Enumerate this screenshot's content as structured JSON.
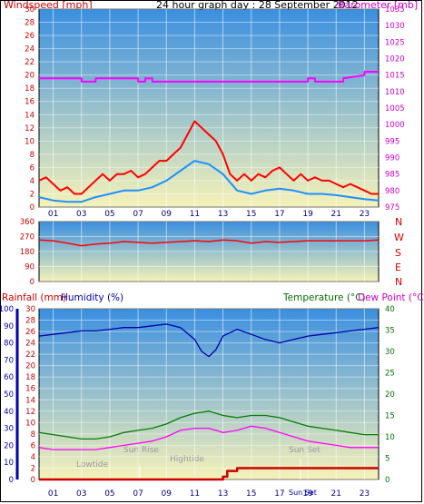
{
  "header": {
    "title": "24 hour graph day : 28 September 2012",
    "left_label": "Windspeed [mph]",
    "right_label": "Barometer [mb]"
  },
  "panel3": {
    "rainfall_label": "Rainfall (mm)",
    "humidity_label": "Humidity (%)",
    "temperature_label": "Temperature (°C)",
    "dewpoint_label": "Dew Point (°C)"
  },
  "direction_letters": [
    "N",
    "W",
    "S",
    "E",
    "N"
  ],
  "time_ticks": [
    "01",
    "03",
    "05",
    "07",
    "09",
    "11",
    "13",
    "15",
    "17",
    "19",
    "21",
    "23"
  ],
  "annotations": {
    "lowtide": "Lowtide",
    "sunrise": "Sun Rise",
    "hightide": "Hightide",
    "sunset": "Sun Set",
    "sunset_bottom": "Sun Set"
  },
  "colors": {
    "windspeed": "#ff0000",
    "windavg": "#1e90ff",
    "barometer": "#ff00ff",
    "direction": "#ff0000",
    "rainfall": "#cc0000",
    "humidity": "#0000aa",
    "temperature": "#008000",
    "dewpoint": "#ff00ff",
    "sky_top": "#3a8fe0",
    "sky_bottom": "#f6f2b8"
  },
  "chart_data": [
    {
      "type": "line",
      "x_unit": "hour",
      "x_range": [
        0,
        24
      ],
      "xticks": [
        "01",
        "03",
        "05",
        "07",
        "09",
        "11",
        "13",
        "15",
        "17",
        "19",
        "21",
        "23"
      ],
      "left_axis": {
        "label": "Windspeed [mph]",
        "ylim": [
          0,
          30
        ],
        "ticks": [
          0,
          2,
          4,
          6,
          8,
          10,
          12,
          14,
          16,
          18,
          20,
          22,
          24,
          26,
          28,
          30
        ]
      },
      "right_axis": {
        "label": "Barometer [mb]",
        "ylim": [
          975,
          1035
        ],
        "ticks": [
          975,
          980,
          985,
          990,
          995,
          1000,
          1005,
          1010,
          1015,
          1020,
          1025,
          1030,
          1035
        ]
      },
      "series": [
        {
          "name": "Windspeed [mph]",
          "axis": "left",
          "x": [
            0,
            0.5,
            1,
            1.5,
            2,
            2.5,
            3,
            3.5,
            4,
            4.5,
            5,
            5.5,
            6,
            6.5,
            7,
            7.5,
            8,
            8.5,
            9,
            9.5,
            10,
            10.5,
            11,
            11.5,
            12,
            12.5,
            13,
            13.5,
            14,
            14.5,
            15,
            15.5,
            16,
            16.5,
            17,
            17.5,
            18,
            18.5,
            19,
            19.5,
            20,
            20.5,
            21,
            21.5,
            22,
            22.5,
            23,
            23.5,
            24
          ],
          "values": [
            4,
            4.5,
            3.5,
            2.5,
            3,
            2,
            2,
            3,
            4,
            5,
            4,
            5,
            5,
            5.5,
            4.5,
            5,
            6,
            7,
            7,
            8,
            9,
            11,
            13,
            12,
            11,
            10,
            8,
            5,
            4,
            5,
            4,
            5,
            4.5,
            5.5,
            6,
            5,
            4,
            5,
            4,
            4.5,
            4,
            4,
            3.5,
            3,
            3.5,
            3,
            2.5,
            2,
            2
          ]
        },
        {
          "name": "Wind average",
          "axis": "left",
          "x": [
            0,
            1,
            2,
            3,
            4,
            5,
            6,
            7,
            8,
            9,
            10,
            11,
            12,
            13,
            14,
            15,
            16,
            17,
            18,
            19,
            20,
            21,
            22,
            23,
            24
          ],
          "values": [
            1.5,
            1,
            0.8,
            0.8,
            1.5,
            2,
            2.5,
            2.5,
            3,
            4,
            5.5,
            7,
            6.5,
            5,
            2.5,
            2,
            2.5,
            2.8,
            2.5,
            2,
            2,
            1.8,
            1.5,
            1.2,
            1
          ]
        },
        {
          "name": "Barometer [mb]",
          "axis": "right",
          "x": [
            0,
            3,
            3.01,
            4,
            4.01,
            7,
            7.01,
            7.5,
            7.51,
            8,
            8.01,
            8.5,
            8.51,
            19,
            19.01,
            19.5,
            19.51,
            21.5,
            21.51,
            23,
            23.01,
            24
          ],
          "values": [
            1014,
            1014,
            1013,
            1013,
            1014,
            1014,
            1013,
            1013,
            1014,
            1014,
            1013,
            1013,
            1013,
            1013,
            1014,
            1014,
            1013,
            1013,
            1014,
            1015,
            1016,
            1016
          ]
        }
      ]
    },
    {
      "type": "line",
      "x_unit": "hour",
      "x_range": [
        0,
        24
      ],
      "y_axis": {
        "label": "Wind direction",
        "ylim": [
          0,
          360
        ],
        "ticks": [
          0,
          90,
          180,
          270,
          360
        ]
      },
      "series": [
        {
          "name": "Wind direction",
          "x": [
            0,
            1,
            2,
            3,
            4,
            5,
            6,
            7,
            8,
            9,
            10,
            11,
            12,
            13,
            14,
            15,
            16,
            17,
            18,
            19,
            20,
            21,
            22,
            23,
            24
          ],
          "values": [
            250,
            245,
            230,
            215,
            225,
            230,
            240,
            235,
            230,
            235,
            240,
            245,
            240,
            250,
            245,
            230,
            240,
            235,
            240,
            245,
            245,
            245,
            245,
            245,
            250
          ]
        }
      ]
    },
    {
      "type": "line",
      "x_unit": "hour",
      "x_range": [
        0,
        24
      ],
      "left_axis_rain": {
        "label": "Rainfall (mm)",
        "ylim": [
          0,
          30
        ],
        "ticks": [
          0,
          2,
          4,
          6,
          8,
          10,
          12,
          14,
          16,
          18,
          20,
          22,
          24,
          26,
          28,
          30
        ]
      },
      "left_axis_humidity": {
        "label": "Humidity (%)",
        "ylim": [
          0,
          100
        ],
        "ticks": [
          0,
          10,
          20,
          30,
          40,
          50,
          60,
          70,
          80,
          90,
          100
        ]
      },
      "right_axis": {
        "label": "Temperature (°C)",
        "ylim": [
          0,
          40
        ],
        "ticks": [
          0,
          5,
          10,
          15,
          20,
          25,
          30,
          35,
          40
        ]
      },
      "series": [
        {
          "name": "Humidity (%)",
          "axis": "humidity",
          "x": [
            0,
            1,
            2,
            3,
            4,
            5,
            6,
            7,
            8,
            9,
            10,
            11,
            11.5,
            12,
            12.5,
            13,
            14,
            15,
            16,
            17,
            18,
            19,
            20,
            21,
            22,
            23,
            24
          ],
          "values": [
            84,
            85,
            86,
            87,
            87,
            88,
            89,
            89,
            90,
            91,
            89,
            82,
            75,
            72,
            76,
            84,
            88,
            85,
            82,
            80,
            82,
            84,
            85,
            86,
            87,
            88,
            89
          ]
        },
        {
          "name": "Temperature (°C)",
          "axis": "right",
          "x": [
            0,
            1,
            2,
            3,
            4,
            5,
            6,
            7,
            8,
            9,
            10,
            11,
            12,
            13,
            14,
            15,
            16,
            17,
            18,
            19,
            20,
            21,
            22,
            23,
            24
          ],
          "values": [
            11,
            10.5,
            10,
            9.5,
            9.5,
            10,
            11,
            11.5,
            12,
            13,
            14.5,
            15.5,
            16,
            15,
            14.5,
            15,
            15,
            14.5,
            13.5,
            12.5,
            12,
            11.5,
            11,
            10.5,
            10.5
          ]
        },
        {
          "name": "Dew Point (°C)",
          "axis": "right",
          "x": [
            0,
            1,
            2,
            3,
            4,
            5,
            6,
            7,
            8,
            9,
            10,
            11,
            12,
            13,
            14,
            15,
            16,
            17,
            18,
            19,
            20,
            21,
            22,
            23,
            24
          ],
          "values": [
            7.5,
            7,
            7,
            7,
            7,
            7.5,
            8,
            8.5,
            9,
            10,
            11.5,
            12,
            12,
            11,
            11.5,
            12.5,
            12,
            11,
            10,
            9,
            8.5,
            8,
            7.5,
            7.5,
            7.5
          ]
        },
        {
          "name": "Rainfall (mm)",
          "axis": "rain",
          "x": [
            0,
            12.5,
            13,
            13.3,
            14,
            15,
            16,
            17,
            18,
            19,
            20,
            21,
            22,
            23,
            24
          ],
          "values": [
            0,
            0,
            0.5,
            1.5,
            2,
            2,
            2,
            2,
            2,
            2,
            2,
            2,
            2,
            2,
            2
          ]
        }
      ]
    }
  ]
}
